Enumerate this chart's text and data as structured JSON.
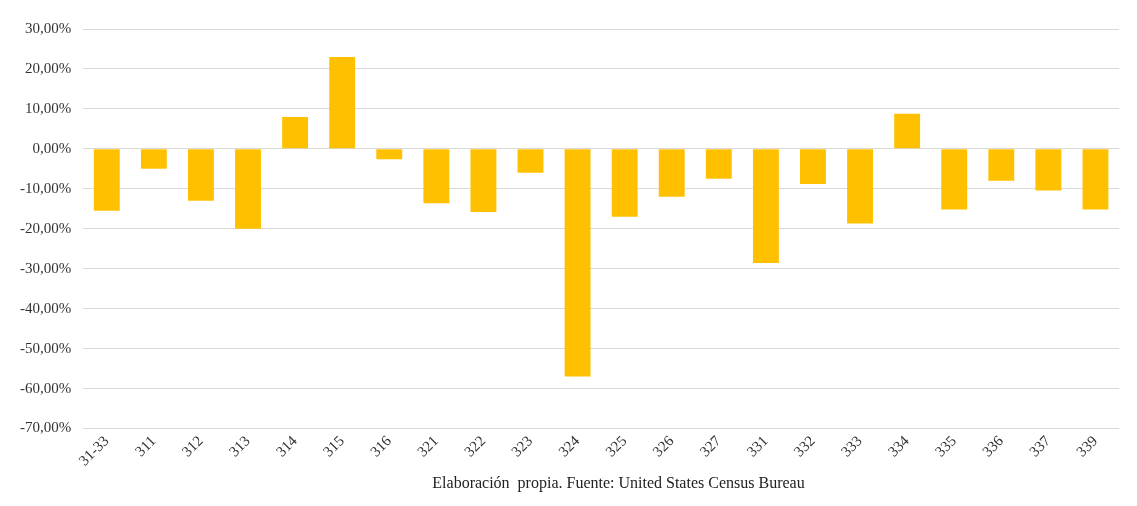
{
  "chart_data": {
    "type": "bar",
    "categories": [
      "31-33",
      "311",
      "312",
      "313",
      "314",
      "315",
      "316",
      "321",
      "322",
      "323",
      "324",
      "325",
      "326",
      "327",
      "331",
      "332",
      "333",
      "334",
      "335",
      "336",
      "337",
      "339"
    ],
    "values": [
      -15.5,
      -5,
      -13,
      -20,
      8,
      23,
      -2.6,
      -13.6,
      -15.8,
      -6,
      -57,
      -17,
      -12,
      -7.5,
      -28.6,
      -8.8,
      -18.7,
      8.8,
      -15.2,
      -8,
      -10.4,
      -15.2
    ],
    "color": "#ffc000",
    "ylim": [
      -70,
      30
    ],
    "yticks": [
      {
        "value": 30,
        "label": "30,00%"
      },
      {
        "value": 20,
        "label": "20,00%"
      },
      {
        "value": 10,
        "label": "10,00%"
      },
      {
        "value": 0,
        "label": "0,00%"
      },
      {
        "value": -10,
        "label": "-10,00%"
      },
      {
        "value": -20,
        "label": "-20,00%"
      },
      {
        "value": -30,
        "label": "-30,00%"
      },
      {
        "value": -40,
        "label": "-40,00%"
      },
      {
        "value": -50,
        "label": "-50,00%"
      },
      {
        "value": -60,
        "label": "-60,00%"
      },
      {
        "value": -70,
        "label": "-70,00%"
      }
    ],
    "grid": "y",
    "legend": false,
    "annotations": [
      "Elaboración  propia. Fuente: United States Census Bureau"
    ]
  }
}
